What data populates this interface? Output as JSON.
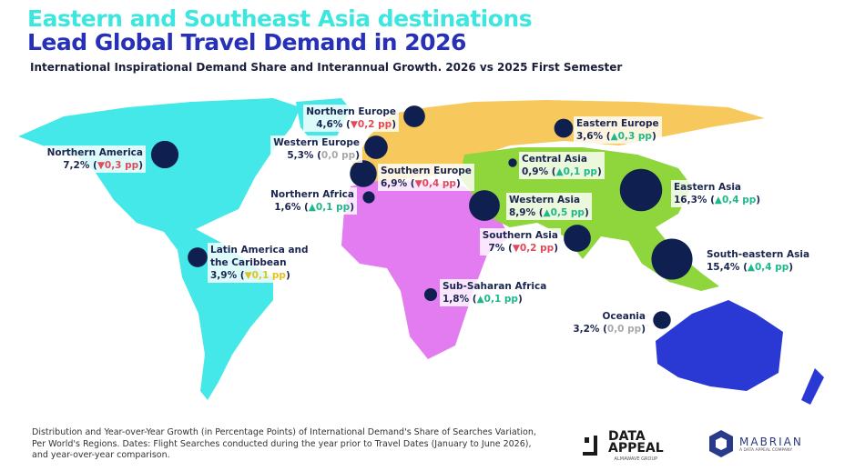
{
  "header": {
    "title_line1": "Eastern and Southeast Asia destinations",
    "title_line2": "Lead Global Travel Demand in 2026",
    "subtitle": "International Inspirational Demand Share and Interannual Growth. 2026 vs 2025 First Semester"
  },
  "colors": {
    "title_cyan": "#3ee6e0",
    "title_blue": "#2630b8",
    "bubble": "#0f1f4f",
    "growth_up": "#1fb88a",
    "growth_down": "#e04a5a",
    "growth_flat": "#a8a8a8",
    "growth_down_minor": "#e6c020",
    "americas": "#45e8e8",
    "europe": "#f7c95c",
    "africa": "#e27cf0",
    "asia": "#8ed63c",
    "oceania": "#2a38d4"
  },
  "chart_data": {
    "type": "bubble-map",
    "unit": "%",
    "growth_unit": "pp",
    "regions": [
      {
        "name": "Northern America",
        "share": "7,2%",
        "share_value": 7.2,
        "growth": "0,3 pp",
        "growth_value": -0.3,
        "direction": "down"
      },
      {
        "name": "Northern Europe",
        "share": "4,6%",
        "share_value": 4.6,
        "growth": "0,2 pp",
        "growth_value": -0.2,
        "direction": "down"
      },
      {
        "name": "Western Europe",
        "share": "5,3%",
        "share_value": 5.3,
        "growth": "0,0 pp",
        "growth_value": 0.0,
        "direction": "flat"
      },
      {
        "name": "Southern Europe",
        "share": "6,9%",
        "share_value": 6.9,
        "growth": "0,4 pp",
        "growth_value": -0.4,
        "direction": "down"
      },
      {
        "name": "Northern Africa",
        "share": "1,6%",
        "share_value": 1.6,
        "growth": "0,1 pp",
        "growth_value": 0.1,
        "direction": "up"
      },
      {
        "name": "Latin America and the Caribbean",
        "share": "3,9%",
        "share_value": 3.9,
        "growth": "0,1 pp",
        "growth_value": -0.1,
        "direction": "down-minor"
      },
      {
        "name": "Eastern Europe",
        "share": "3,6%",
        "share_value": 3.6,
        "growth": "0,3 pp",
        "growth_value": 0.3,
        "direction": "up"
      },
      {
        "name": "Central Asia",
        "share": "0,9%",
        "share_value": 0.9,
        "growth": "0,1 pp",
        "growth_value": 0.1,
        "direction": "up"
      },
      {
        "name": "Western Asia",
        "share": "8,9%",
        "share_value": 8.9,
        "growth": "0,5 pp",
        "growth_value": 0.5,
        "direction": "up"
      },
      {
        "name": "Southern Asia",
        "share": "7%",
        "share_value": 7.0,
        "growth": "0,2 pp",
        "growth_value": -0.2,
        "direction": "down"
      },
      {
        "name": "Eastern Asia",
        "share": "16,3%",
        "share_value": 16.3,
        "growth": "0,4 pp",
        "growth_value": 0.4,
        "direction": "up"
      },
      {
        "name": "South-eastern Asia",
        "share": "15,4%",
        "share_value": 15.4,
        "growth": "0,4 pp",
        "growth_value": 0.4,
        "direction": "up"
      },
      {
        "name": "Sub-Saharan Africa",
        "share": "1,8%",
        "share_value": 1.8,
        "growth": "0,1 pp",
        "growth_value": 0.1,
        "direction": "up"
      },
      {
        "name": "Oceania",
        "share": "3,2%",
        "share_value": 3.2,
        "growth": "0,0 pp",
        "growth_value": 0.0,
        "direction": "flat"
      }
    ]
  },
  "footer": {
    "note": "Distribution and Year-over-Year Growth (in Percentage Points) of International Demand's Share of Searches Variation, Per World's Regions. Dates: Flight Searches conducted  during the year prior to Travel Dates (January to June 2026), and year-over-year comparison.",
    "logo1_line1": "DATA",
    "logo1_line2": "APPEAL",
    "logo1_tag": "ALMAWAVE GROUP",
    "logo2_name": "MABRIAN",
    "logo2_tag": "A DATA APPEAL COMPANY"
  }
}
